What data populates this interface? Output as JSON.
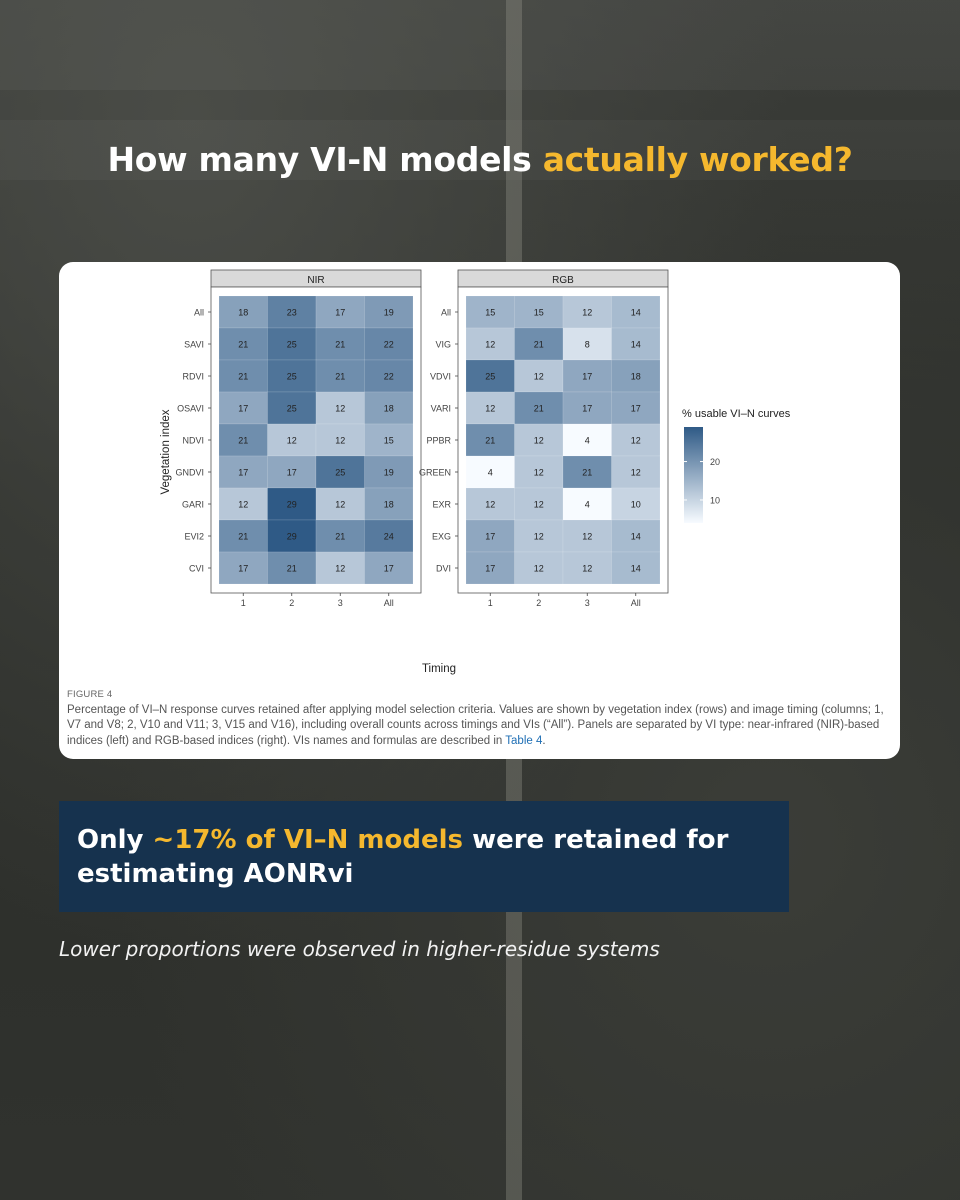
{
  "headline": {
    "prefix": "How many VI-N models ",
    "accent": "actually worked?"
  },
  "chart_data": {
    "type": "heatmap",
    "x_label": "Timing",
    "y_label": "Vegetation index",
    "x_categories": [
      "1",
      "2",
      "3",
      "All"
    ],
    "legend": {
      "title": "% usable VI–N curves",
      "ticks": [
        20,
        10
      ],
      "range": [
        4,
        29
      ],
      "low_color": "#f7fbff",
      "high_color": "#2f5a86"
    },
    "panels": [
      {
        "title": "NIR",
        "rows": [
          "All",
          "SAVI",
          "RDVI",
          "OSAVI",
          "NDVI",
          "GNDVI",
          "GARI",
          "EVI2",
          "CVI"
        ],
        "values": [
          [
            18,
            23,
            17,
            19
          ],
          [
            21,
            25,
            21,
            22
          ],
          [
            21,
            25,
            21,
            22
          ],
          [
            17,
            25,
            12,
            18
          ],
          [
            21,
            12,
            12,
            15
          ],
          [
            17,
            17,
            25,
            19
          ],
          [
            12,
            29,
            12,
            18
          ],
          [
            21,
            29,
            21,
            24
          ],
          [
            17,
            21,
            12,
            17
          ]
        ]
      },
      {
        "title": "RGB",
        "rows": [
          "All",
          "VIG",
          "VDVI",
          "VARI",
          "PPBR",
          "GREEN",
          "EXR",
          "EXG",
          "DVI"
        ],
        "values": [
          [
            15,
            15,
            12,
            14
          ],
          [
            12,
            21,
            8,
            14
          ],
          [
            25,
            12,
            17,
            18
          ],
          [
            12,
            21,
            17,
            17
          ],
          [
            21,
            12,
            4,
            12
          ],
          [
            4,
            12,
            21,
            12
          ],
          [
            12,
            12,
            4,
            10
          ],
          [
            17,
            12,
            12,
            14
          ],
          [
            17,
            12,
            12,
            14
          ]
        ]
      }
    ]
  },
  "caption": {
    "figure_label": "FIGURE 4",
    "text": "Percentage of VI–N response curves retained after applying model selection criteria. Values are shown by vegetation index (rows) and image timing (columns; 1, V7 and V8; 2, V10 and V11; 3, V15 and V16), including overall counts across timings and VIs (“All”). Panels are separated by VI type: near-infrared (NIR)-based indices (left) and RGB-based indices (right). VIs names and formulas are described in ",
    "link": "Table 4",
    "end": "."
  },
  "banner": {
    "prefix": "Only ",
    "accent": "~17% of VI–N models",
    "suffix": " were retained for estimating AONRvi"
  },
  "subnote": "Lower proportions were observed in higher-residue systems"
}
